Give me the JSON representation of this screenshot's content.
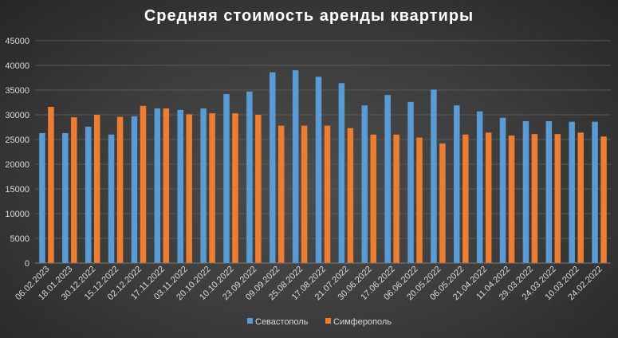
{
  "chart_data": {
    "type": "bar",
    "title": "Средняя стоимость аренды квартиры",
    "xlabel": "",
    "ylabel": "",
    "ylim": [
      0,
      45000
    ],
    "yticks": [
      0,
      5000,
      10000,
      15000,
      20000,
      25000,
      30000,
      35000,
      40000,
      45000
    ],
    "grid": true,
    "legend_position": "bottom",
    "categories": [
      "06.02.2023",
      "18.01.2023",
      "30.12.2022",
      "15.12.2022",
      "02.12.2022",
      "17.11.2022",
      "03.11.2022",
      "20.10.2022",
      "10.10.2022",
      "23.09.2022",
      "09.09.2022",
      "25.08.2022",
      "17.08.2022",
      "21.07.2022",
      "30.06.2022",
      "17.06.2022",
      "06.06.2022",
      "20.05.2022",
      "06.05.2022",
      "21.04.2022",
      "11.04.2022",
      "29.03.2022",
      "24.03.2022",
      "10.03.2022",
      "24.02.2022"
    ],
    "series": [
      {
        "name": "Севастополь",
        "color": "#5b9bd5",
        "values": [
          26300,
          26300,
          27600,
          26000,
          29700,
          31300,
          31000,
          31300,
          34200,
          34700,
          38600,
          39000,
          37700,
          36400,
          31900,
          34000,
          32600,
          35100,
          31900,
          30700,
          29400,
          28700,
          28700,
          28600,
          28600
        ]
      },
      {
        "name": "Симферополь",
        "color": "#ed7d31",
        "values": [
          31600,
          29500,
          30000,
          29600,
          31800,
          31300,
          30100,
          30300,
          30300,
          30000,
          27800,
          27800,
          27800,
          27300,
          26000,
          26000,
          25400,
          24200,
          26000,
          26400,
          25800,
          26100,
          26100,
          26400,
          25600
        ]
      }
    ]
  }
}
